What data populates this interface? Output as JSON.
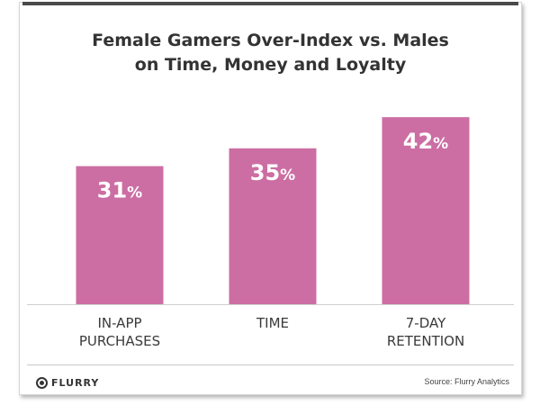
{
  "chart_data": {
    "type": "bar",
    "title": "Female Gamers Over-Index vs. Males\non Time, Money and Loyalty",
    "categories": [
      "IN-APP\nPURCHASES",
      "TIME",
      "7-DAY\nRETENTION"
    ],
    "values": [
      31,
      35,
      42
    ],
    "unit": "%",
    "ylim": [
      0,
      48.5
    ],
    "grid": false,
    "bar_color": "#cc6ea3",
    "value_label_color": "#ffffff"
  },
  "footer": {
    "logo_text": "FLURRY",
    "source": "Source: Flurry Analytics"
  }
}
